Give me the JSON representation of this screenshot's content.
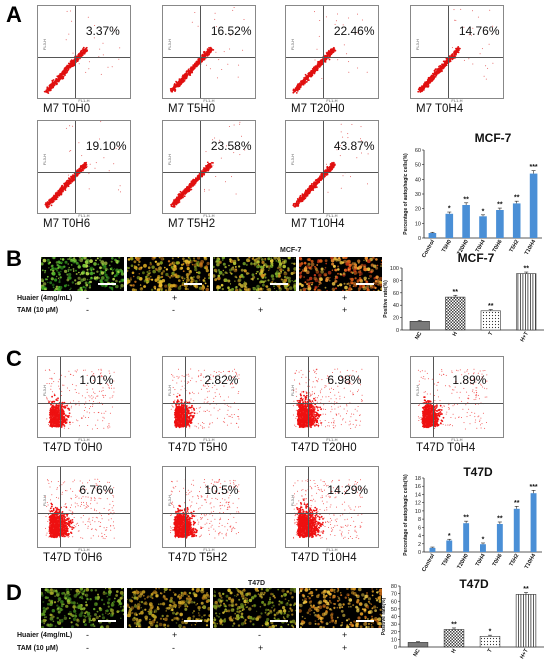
{
  "panels": {
    "A": {
      "letter": "A",
      "plots": [
        {
          "pct": "3.37%",
          "label": "M7 T0H0",
          "density": 0.5
        },
        {
          "pct": "16.52%",
          "label": "M7 T5H0",
          "density": 0.55
        },
        {
          "pct": "22.46%",
          "label": "M7 T20H0",
          "density": 0.55
        },
        {
          "pct": "14.76%",
          "label": "M7 T0H4",
          "density": 0.55
        },
        {
          "pct": "19.10%",
          "label": "M7 T0H6",
          "density": 0.55
        },
        {
          "pct": "23.58%",
          "label": "M7 T5H2",
          "density": 0.55
        },
        {
          "pct": "43.87%",
          "label": "M7 T10H4",
          "density": 0.6
        }
      ]
    },
    "B": {
      "letter": "B",
      "micro_title": "MCF-7",
      "huaier_label": "Huaier (4mg/mL)",
      "tam_label": "TAM (10 μM)",
      "huaier_signs": [
        "-",
        "+",
        "-",
        "+"
      ],
      "tam_signs": [
        "-",
        "-",
        "+",
        "+"
      ]
    },
    "C": {
      "letter": "C",
      "plots": [
        {
          "pct": "1.01%",
          "label": "T47D T0H0",
          "density": 1
        },
        {
          "pct": "2.82%",
          "label": "T47D T5H0",
          "density": 1
        },
        {
          "pct": "6.98%",
          "label": "T47D T20H0",
          "density": 1.2
        },
        {
          "pct": "1.89%",
          "label": "T47D T0H4",
          "density": 1
        },
        {
          "pct": "6.76%",
          "label": "T47D T0H6",
          "density": 1.2
        },
        {
          "pct": "10.5%",
          "label": "T47D T5H2",
          "density": 1.2
        },
        {
          "pct": "14.29%",
          "label": "T47D T10H4",
          "density": 1.3
        }
      ]
    },
    "D": {
      "letter": "D",
      "micro_title": "T47D",
      "huaier_label": "Huaier (4mg/mL)",
      "tam_label": "TAM (10 μM)",
      "huaier_signs": [
        "-",
        "+",
        "-",
        "+"
      ],
      "tam_signs": [
        "-",
        "-",
        "+",
        "+"
      ]
    },
    "axis": {
      "fl1": "FL1-H",
      "fl3": "FL3-H"
    }
  },
  "chart_data": [
    {
      "id": "A-bar",
      "type": "bar",
      "title": "MCF-7",
      "ylabel": "Percentage of autophagic cells(%)",
      "ylim": [
        0,
        60
      ],
      "yticks": [
        0,
        10,
        20,
        30,
        40,
        50,
        60
      ],
      "categories": [
        "Control",
        "T5H0",
        "T20H0",
        "T0H4",
        "T0H6",
        "T5H2",
        "T10H4"
      ],
      "values": [
        3.4,
        16.5,
        22.5,
        14.8,
        19.1,
        23.6,
        43.9
      ],
      "errors": [
        0.5,
        1.2,
        1.5,
        1.0,
        1.3,
        1.5,
        2.0
      ],
      "sig": [
        "",
        "*",
        "**",
        "*",
        "**",
        "**",
        "***"
      ],
      "color": "#4a8fd6"
    },
    {
      "id": "B-bar",
      "type": "bar",
      "title": "MCF-7",
      "ylabel": "Positive rate(%)",
      "ylim": [
        0,
        100
      ],
      "yticks": [
        0,
        20,
        40,
        60,
        80,
        100
      ],
      "categories": [
        "NC",
        "H",
        "T",
        "H+T"
      ],
      "values": [
        14,
        53,
        31,
        91
      ],
      "errors": [
        1.5,
        3,
        2,
        2.5
      ],
      "sig": [
        "",
        "**",
        "**",
        "**"
      ],
      "patterns": [
        "solid",
        "check",
        "dots",
        "vlines"
      ]
    },
    {
      "id": "C-bar",
      "type": "bar",
      "title": "T47D",
      "ylabel": "Percentage of autophagic cells(%)",
      "ylim": [
        0,
        18
      ],
      "yticks": [
        0,
        2,
        4,
        6,
        8,
        10,
        12,
        14,
        16,
        18
      ],
      "categories": [
        "Control",
        "T5H0",
        "T20H0",
        "T0H4",
        "T0H6",
        "T5H2",
        "T10H4"
      ],
      "values": [
        1.0,
        2.8,
        7.0,
        1.9,
        6.8,
        10.5,
        14.3
      ],
      "errors": [
        0.2,
        0.3,
        0.5,
        0.3,
        0.5,
        0.6,
        0.7
      ],
      "sig": [
        "",
        "*",
        "**",
        "*",
        "**",
        "**",
        "***"
      ],
      "color": "#4a8fd6"
    },
    {
      "id": "D-bar",
      "type": "bar",
      "title": "T47D",
      "ylabel": "Positive rate(%)",
      "ylim": [
        0,
        80
      ],
      "yticks": [
        0,
        10,
        20,
        30,
        40,
        50,
        60,
        70,
        80
      ],
      "categories": [
        "NC",
        "H",
        "T",
        "H+T"
      ],
      "values": [
        6,
        23,
        14,
        69
      ],
      "errors": [
        1,
        2,
        1.5,
        2.5
      ],
      "sig": [
        "",
        "**",
        "*",
        "**"
      ],
      "patterns": [
        "solid",
        "check",
        "dots",
        "vlines"
      ]
    }
  ]
}
